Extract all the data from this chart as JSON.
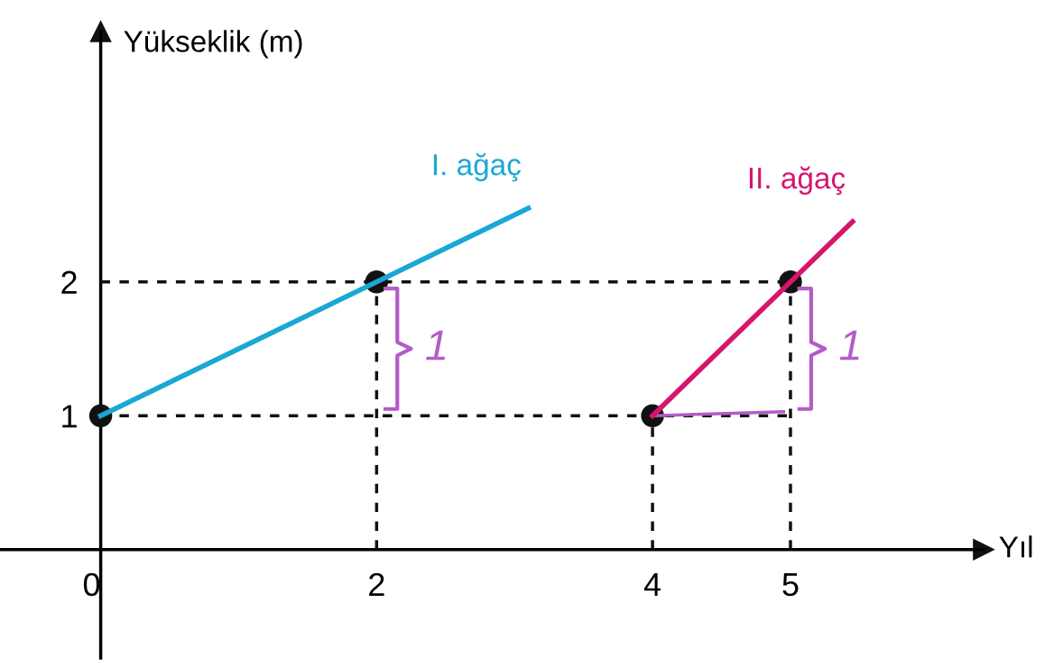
{
  "chart_data": {
    "type": "line",
    "xlabel": "Yıl",
    "ylabel": "Yükseklik (m)",
    "xlim": [
      -0.73,
      6.4
    ],
    "ylim": [
      -0.81,
      3.87
    ],
    "xticks": [
      0,
      2,
      4,
      5
    ],
    "yticks": [
      1,
      2
    ],
    "grid": false,
    "legend": false,
    "series": [
      {
        "type": "line",
        "line_style": "dashed",
        "color": "#111111",
        "x": [
          0,
          5
        ],
        "values": [
          1,
          1
        ]
      },
      {
        "type": "line",
        "line_style": "dashed",
        "color": "#111111",
        "x": [
          0,
          5
        ],
        "values": [
          2,
          2
        ]
      },
      {
        "type": "line",
        "line_style": "dashed",
        "color": "#111111",
        "x": [
          2,
          2
        ],
        "values": [
          0,
          2
        ]
      },
      {
        "type": "line",
        "line_style": "dashed",
        "color": "#111111",
        "x": [
          4,
          4
        ],
        "values": [
          0,
          1
        ]
      },
      {
        "type": "line",
        "line_style": "dashed",
        "color": "#111111",
        "x": [
          5,
          5
        ],
        "values": [
          0,
          2
        ]
      },
      {
        "type": "line",
        "line_style": "solid",
        "color": "#b45bc8",
        "x": [
          4,
          4.95
        ],
        "values": [
          1,
          1.03
        ]
      },
      {
        "name": "I. ağaç",
        "line_style": "solid",
        "color": "#1aa7d6",
        "x": [
          0,
          2,
          3.1
        ],
        "values": [
          1,
          2,
          2.55
        ]
      },
      {
        "name": "II. ağaç",
        "line_style": "solid",
        "color": "#d6156e",
        "x": [
          4,
          5,
          5.45
        ],
        "values": [
          1,
          2,
          2.45
        ]
      },
      {
        "type": "scatter",
        "marker": "circle",
        "color": "#111111",
        "x": [
          0,
          2,
          4,
          5
        ],
        "values": [
          1,
          2,
          1,
          2
        ]
      }
    ],
    "annotations": [
      "1",
      "1"
    ]
  }
}
